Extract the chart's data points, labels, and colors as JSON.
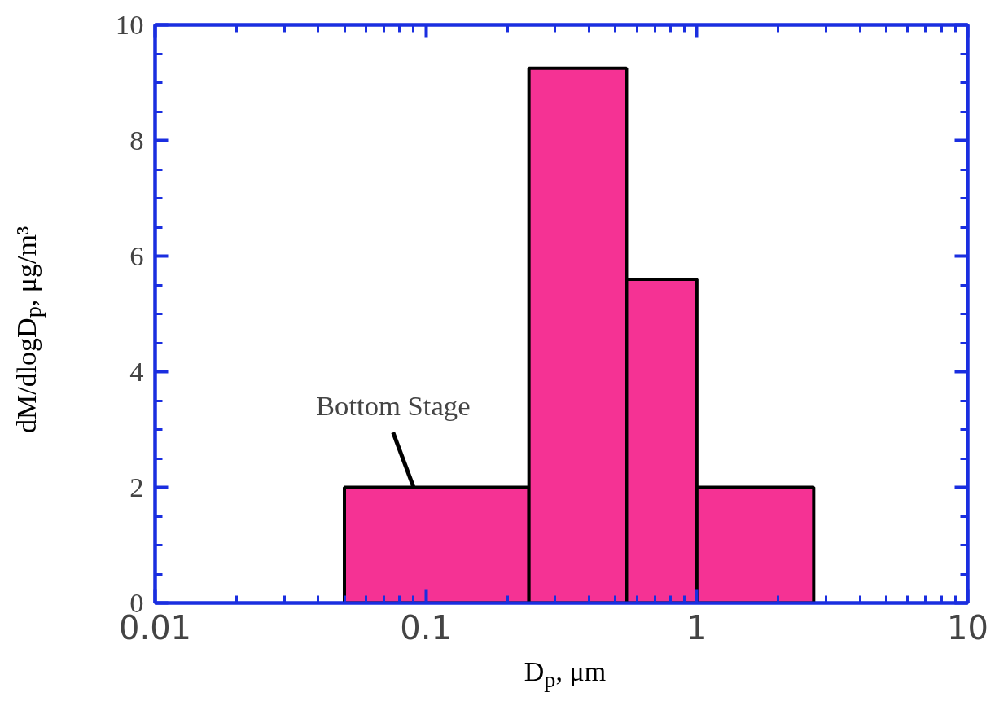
{
  "chart_data": {
    "type": "histogram",
    "xlabel": "D$_{p}$, μm",
    "ylabel": "dM/dlogD$_{p}$, μg/m³",
    "bins": [
      0.05,
      0.24,
      0.55,
      1.0,
      2.7
    ],
    "values": [
      2.0,
      9.25,
      5.6,
      2.0
    ],
    "color": "#f53294",
    "log": "x",
    "xlim": [
      0.01,
      10
    ],
    "xticks": [
      0.01,
      0.1,
      1,
      10
    ],
    "ylim": [
      0,
      10
    ],
    "yticks": [
      0,
      2,
      4,
      6,
      8,
      10
    ],
    "grid": false,
    "annotations": [
      {
        "text": "Bottom Stage",
        "x": 0.09,
        "y": 2.0
      }
    ]
  }
}
